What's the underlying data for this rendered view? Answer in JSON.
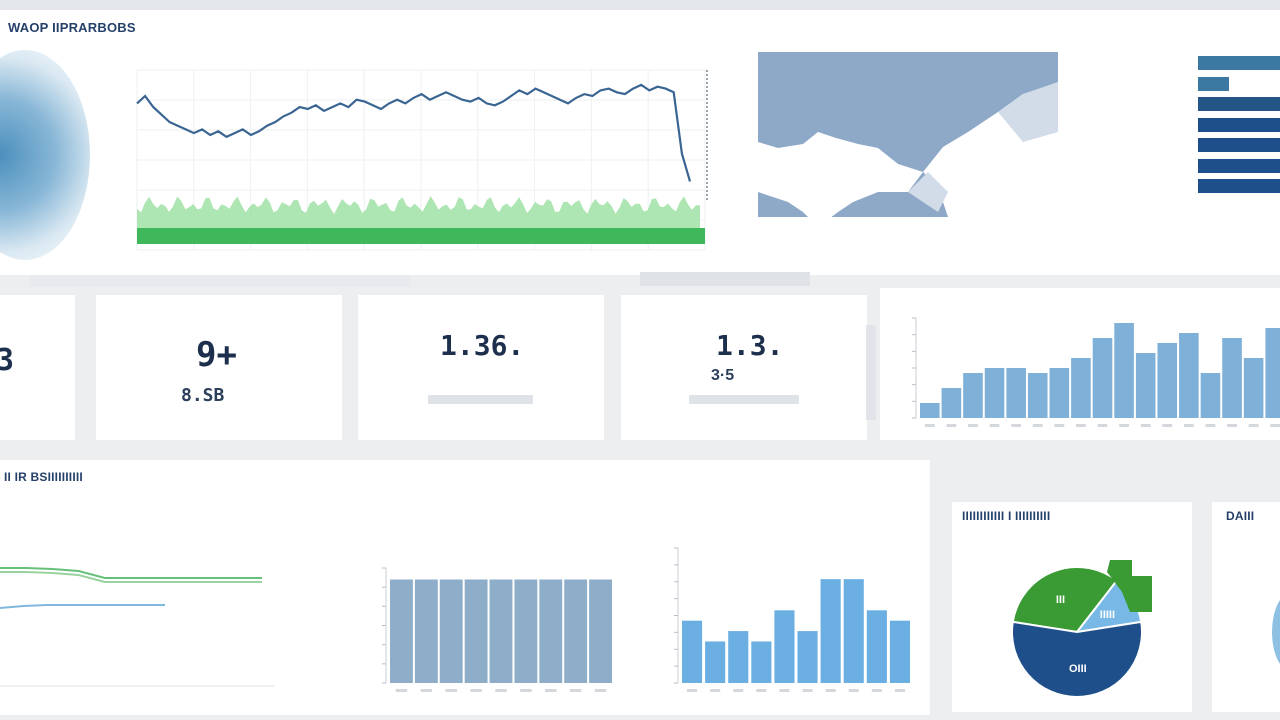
{
  "header": {
    "title": "WAOP IIPRARBOBS"
  },
  "top_line_chart": {
    "y_ticks": [
      "",
      "",
      "",
      "",
      "",
      "",
      ""
    ],
    "x_ticks": [
      "",
      "",
      "",
      "",
      "",
      "",
      "",
      "",
      "",
      ""
    ],
    "line_values": [
      72,
      76,
      70,
      66,
      62,
      60,
      58,
      56,
      58,
      55,
      57,
      54,
      56,
      58,
      55,
      57,
      60,
      62,
      65,
      67,
      70,
      69,
      71,
      68,
      70,
      72,
      70,
      74,
      73,
      71,
      69,
      72,
      74,
      72,
      75,
      77,
      74,
      76,
      78,
      76,
      74,
      73,
      75,
      72,
      71,
      73,
      76,
      79,
      77,
      80,
      78,
      76,
      74,
      72,
      75,
      77,
      76,
      79,
      80,
      78,
      77,
      80,
      82,
      79,
      81,
      80,
      78,
      45,
      30
    ],
    "line_color": "#3a6592",
    "fill_color": "#9fe0a6",
    "band_color": "#3fb85b"
  },
  "map_panel": {
    "labels": [
      "",
      "",
      "",
      ""
    ],
    "water_color": "#8ea9c8"
  },
  "hbar_chart": {
    "categories": [
      "",
      "",
      "",
      "",
      "",
      "",
      "",
      ""
    ],
    "values": [
      100,
      38,
      100,
      100,
      100,
      100,
      100,
      0
    ],
    "colors": [
      "#3b79a2",
      "#3b79a2",
      "#255487",
      "#1f4f8b",
      "#1f4f8b",
      "#1f4f8b",
      "#1f4f8b",
      "#1f4f8b"
    ]
  },
  "kpis": [
    {
      "value": "3",
      "sub": "",
      "foot": ""
    },
    {
      "label": "",
      "value": "9+",
      "sub": "8.SB",
      "foot": ""
    },
    {
      "label": "",
      "value": "1.36.",
      "sub": "",
      "foot": ""
    },
    {
      "label": "",
      "value": "1.3.",
      "sub": "3·5",
      "foot": ""
    }
  ],
  "bar_chart_1": {
    "title": "",
    "values": [
      3,
      6,
      9,
      10,
      10,
      9,
      10,
      12,
      16,
      19,
      13,
      15,
      17,
      9,
      16,
      12,
      18
    ],
    "ymax": 20,
    "color": "#7fb0d8"
  },
  "section2": {
    "title": "II IR BSIIIIIIIIII"
  },
  "lines_chart": {
    "series": [
      {
        "values": [
          20,
          20,
          21,
          23,
          30,
          30,
          30,
          30,
          30,
          30,
          30
        ],
        "color": "#66c07a"
      },
      {
        "values": [
          24,
          24,
          25,
          27,
          34,
          34,
          34,
          34,
          34,
          34,
          34
        ],
        "color": "#9ad39f"
      },
      {
        "values": [
          60,
          58,
          57,
          57,
          57,
          57,
          57,
          57
        ],
        "color": "#7fb8dc"
      }
    ]
  },
  "bar_chart_2": {
    "title": "",
    "values": [
      90,
      90,
      90,
      90,
      90,
      90,
      90,
      90,
      90
    ],
    "ymax": 100,
    "color": "#8eadc9"
  },
  "bar_chart_3": {
    "title": "",
    "values": [
      6,
      4,
      5,
      4,
      7,
      5,
      10,
      10,
      7,
      6
    ],
    "ymax": 13,
    "color": "#6aaee2"
  },
  "pie_panel": {
    "title": "IIIIIIIIIIII I IIIIIIIIII",
    "subtitle": "",
    "slices": [
      {
        "label": "III",
        "value": 33,
        "color": "#3a9b35"
      },
      {
        "label": "IIIII",
        "value": 12,
        "color": "#78b8e6"
      },
      {
        "label": "OIII",
        "value": 55,
        "color": "#1f4f8b"
      }
    ]
  },
  "right_panel": {
    "title": "DAIII"
  }
}
